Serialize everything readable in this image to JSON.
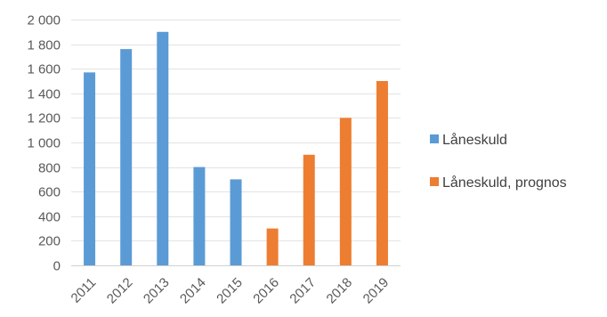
{
  "chart_data": {
    "type": "bar",
    "title": "",
    "xlabel": "",
    "ylabel": "",
    "categories": [
      "2011",
      "2012",
      "2013",
      "2014",
      "2015",
      "2016",
      "2017",
      "2018",
      "2019"
    ],
    "series": [
      {
        "name": "Låneskuld",
        "color": "#5b9bd5",
        "values": [
          1570,
          1760,
          1900,
          800,
          700,
          null,
          null,
          null,
          null
        ]
      },
      {
        "name": "Låneskuld, prognos",
        "color": "#ed7d31",
        "values": [
          null,
          null,
          null,
          null,
          null,
          300,
          900,
          1200,
          1500
        ]
      }
    ],
    "ylim": [
      0,
      2000
    ],
    "yticks": [
      0,
      200,
      400,
      600,
      800,
      1000,
      1200,
      1400,
      1600,
      1800,
      2000
    ],
    "ytick_labels": [
      "0",
      "200",
      "400",
      "600",
      "800",
      "1 000",
      "1 200",
      "1 400",
      "1 600",
      "1 800",
      "2 000"
    ],
    "grid": true,
    "legend_position": "right"
  }
}
